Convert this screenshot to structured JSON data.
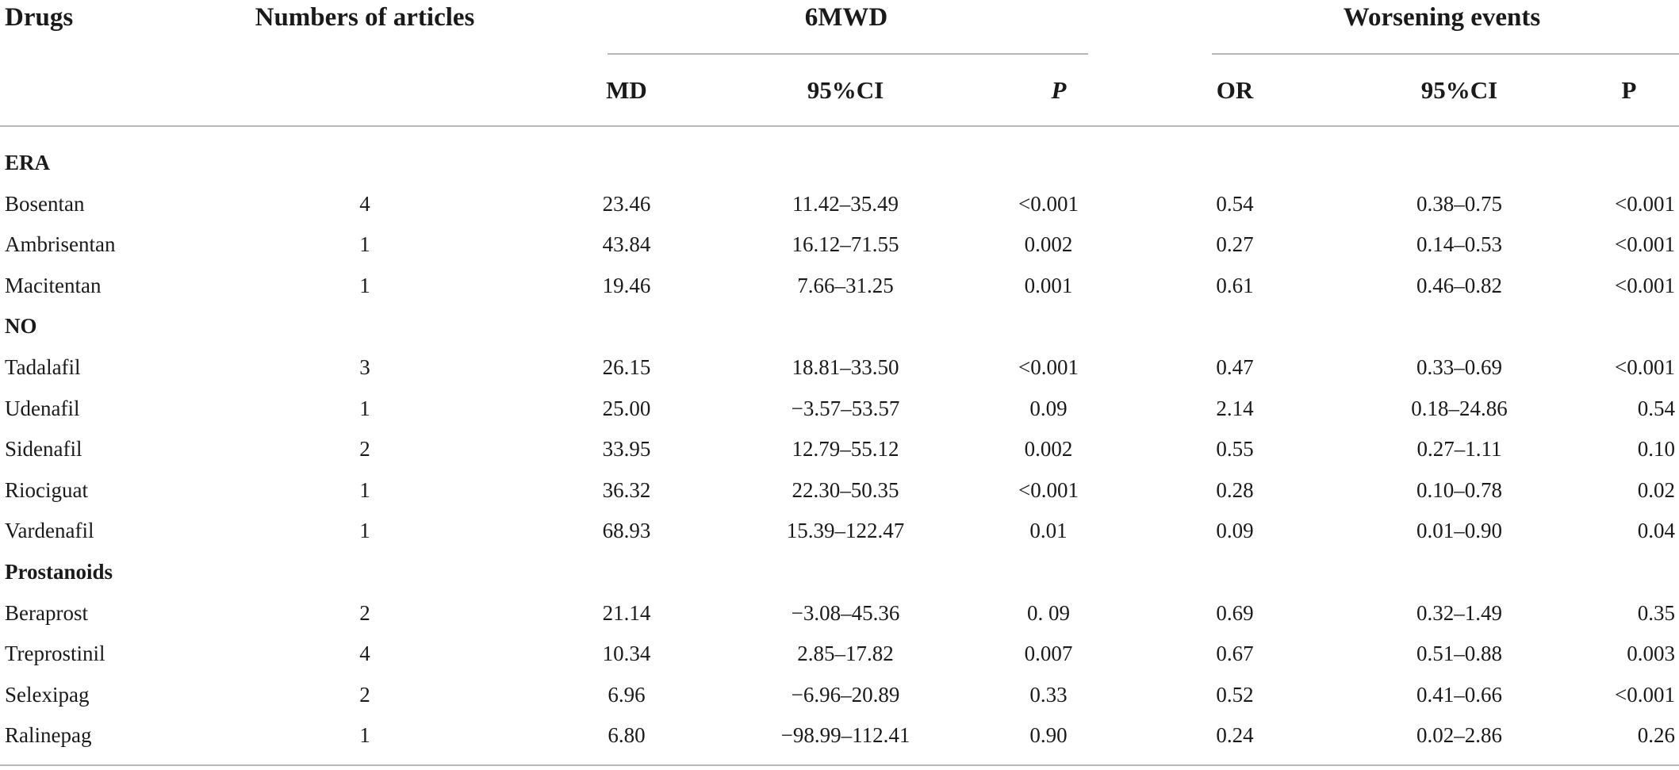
{
  "header": {
    "drugs": "Drugs",
    "articles": "Numbers of articles",
    "group_6mwd": "6MWD",
    "group_worsening": "Worsening events",
    "md": "MD",
    "ci1": "95%CI",
    "p1": "P",
    "or": "OR",
    "ci2": "95%CI",
    "p2": "P"
  },
  "rows": [
    {
      "group": "ERA"
    },
    {
      "drug": "Bosentan",
      "n": "4",
      "md": "23.46",
      "ci1": "11.42–35.49",
      "p1": "<0.001",
      "or": "0.54",
      "ci2": "0.38–0.75",
      "p2": "<0.001"
    },
    {
      "drug": "Ambrisentan",
      "n": "1",
      "md": "43.84",
      "ci1": "16.12–71.55",
      "p1": "0.002",
      "or": "0.27",
      "ci2": "0.14–0.53",
      "p2": "<0.001"
    },
    {
      "drug": "Macitentan",
      "n": "1",
      "md": "19.46",
      "ci1": "7.66–31.25",
      "p1": "0.001",
      "or": "0.61",
      "ci2": "0.46–0.82",
      "p2": "<0.001"
    },
    {
      "group": "NO"
    },
    {
      "drug": "Tadalafil",
      "n": "3",
      "md": "26.15",
      "ci1": "18.81–33.50",
      "p1": "<0.001",
      "or": "0.47",
      "ci2": "0.33–0.69",
      "p2": "<0.001"
    },
    {
      "drug": "Udenafil",
      "n": "1",
      "md": "25.00",
      "ci1": "−3.57–53.57",
      "p1": "0.09",
      "or": "2.14",
      "ci2": "0.18–24.86",
      "p2": "0.54"
    },
    {
      "drug": "Sidenafil",
      "n": "2",
      "md": "33.95",
      "ci1": "12.79–55.12",
      "p1": "0.002",
      "or": "0.55",
      "ci2": "0.27–1.11",
      "p2": "0.10"
    },
    {
      "drug": "Riociguat",
      "n": "1",
      "md": "36.32",
      "ci1": "22.30–50.35",
      "p1": "<0.001",
      "or": "0.28",
      "ci2": "0.10–0.78",
      "p2": "0.02"
    },
    {
      "drug": "Vardenafil",
      "n": "1",
      "md": "68.93",
      "ci1": "15.39–122.47",
      "p1": "0.01",
      "or": "0.09",
      "ci2": "0.01–0.90",
      "p2": "0.04"
    },
    {
      "group": "Prostanoids"
    },
    {
      "drug": "Beraprost",
      "n": "2",
      "md": "21.14",
      "ci1": "−3.08–45.36",
      "p1": "0. 09",
      "or": "0.69",
      "ci2": "0.32–1.49",
      "p2": "0.35"
    },
    {
      "drug": "Treprostinil",
      "n": "4",
      "md": "10.34",
      "ci1": "2.85–17.82",
      "p1": "0.007",
      "or": "0.67",
      "ci2": "0.51–0.88",
      "p2": "0.003"
    },
    {
      "drug": "Selexipag",
      "n": "2",
      "md": "6.96",
      "ci1": "−6.96–20.89",
      "p1": "0.33",
      "or": "0.52",
      "ci2": "0.41–0.66",
      "p2": "<0.001"
    },
    {
      "drug": "Ralinepag",
      "n": "1",
      "md": "6.80",
      "ci1": "−98.99–112.41",
      "p1": "0.90",
      "or": "0.24",
      "ci2": "0.02–2.86",
      "p2": "0.26"
    }
  ]
}
